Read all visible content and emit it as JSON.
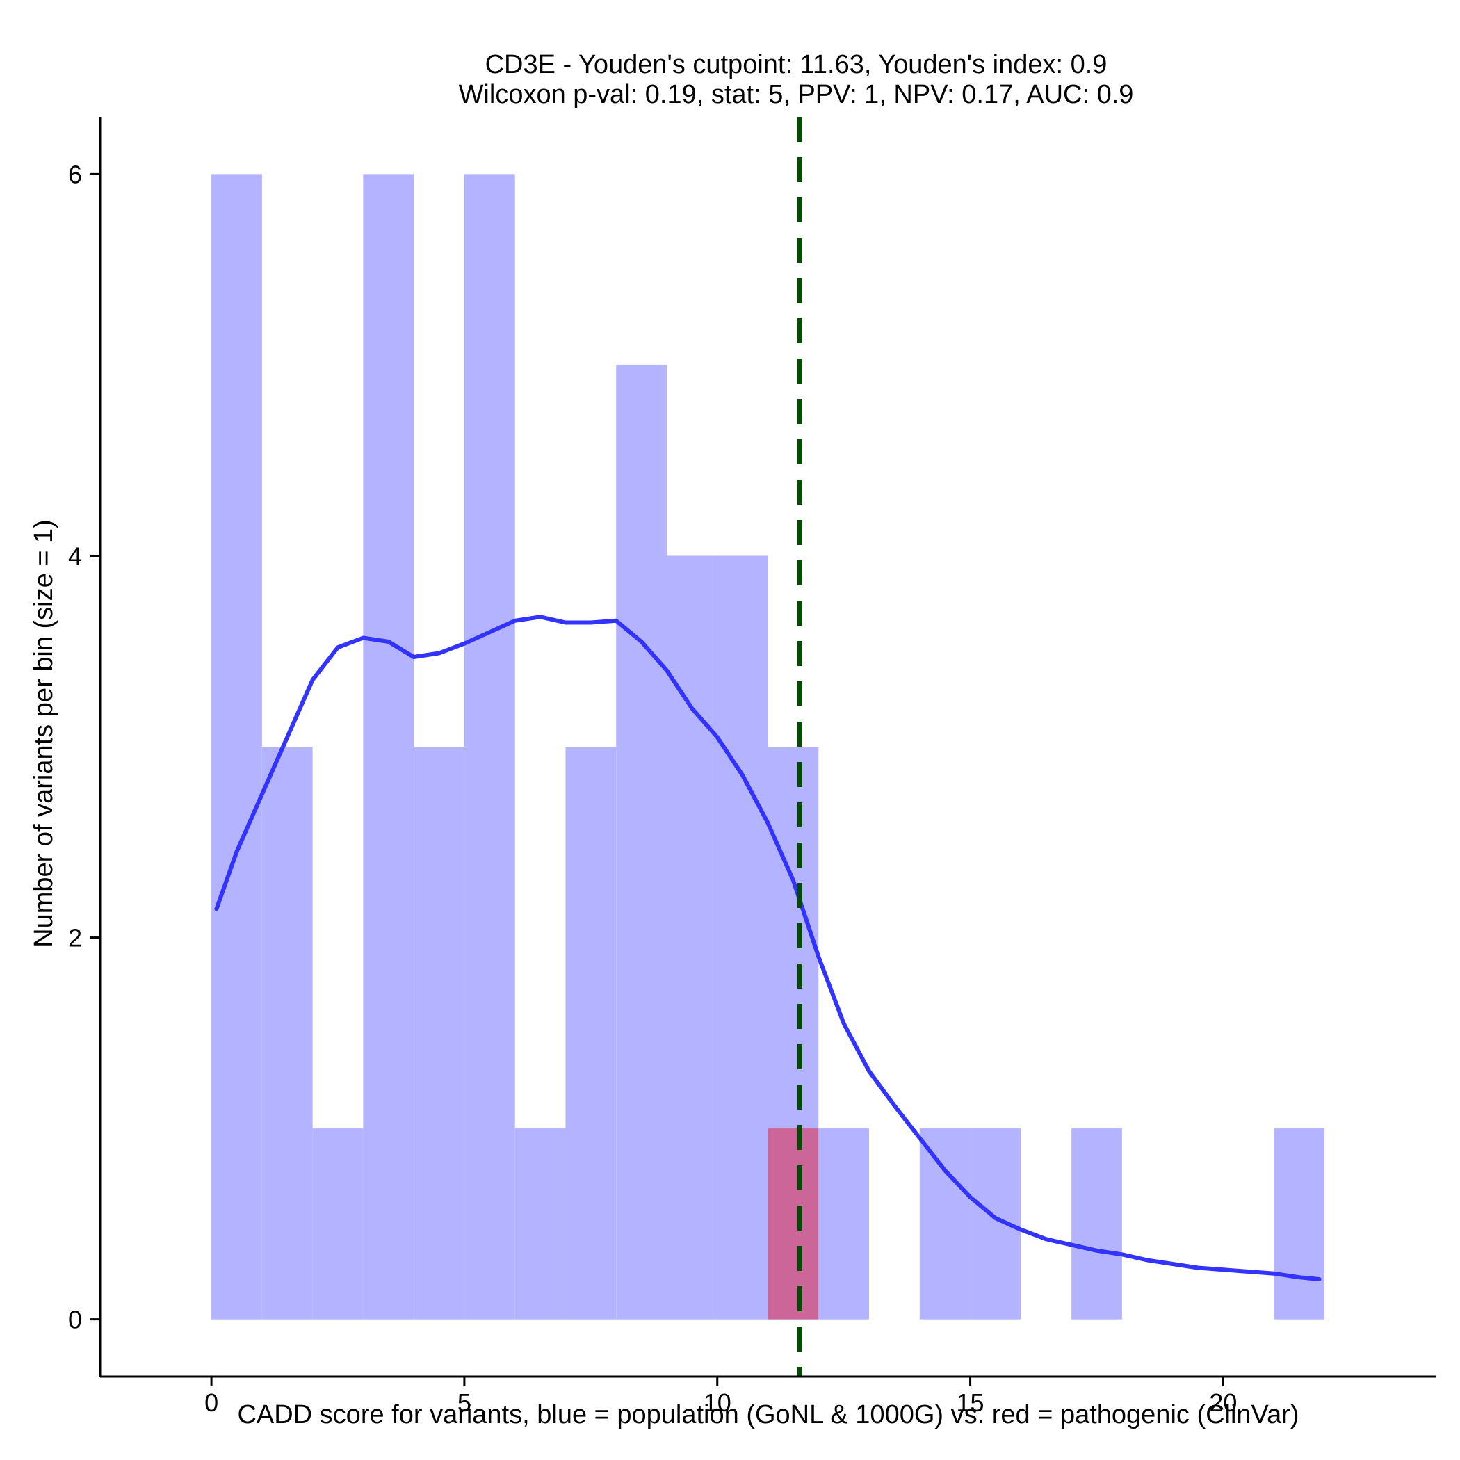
{
  "chart_data": {
    "type": "bar",
    "title_lines": [
      "CD3E - Youden's cutpoint: 11.63, Youden's index: 0.9",
      "Wilcoxon p-val: 0.19, stat: 5, PPV: 1, NPV: 0.17, AUC: 0.9"
    ],
    "xlabel": "CADD score for variants, blue = population (GoNL & 1000G) vs. red = pathogenic (ClinVar)",
    "ylabel": "Number of variants per bin (size = 1)",
    "xlim": [
      -2.2,
      24.2
    ],
    "ylim": [
      -0.3,
      6.3
    ],
    "xticks": [
      0,
      5,
      10,
      15,
      20
    ],
    "yticks": [
      0,
      2,
      4,
      6
    ],
    "bin_width": 1,
    "cutpoint": 11.63,
    "series": [
      {
        "name": "population (GoNL & 1000G)",
        "color": "#b3b3ff",
        "bins": [
          {
            "start": 0,
            "count": 6
          },
          {
            "start": 1,
            "count": 3
          },
          {
            "start": 2,
            "count": 1
          },
          {
            "start": 3,
            "count": 6
          },
          {
            "start": 4,
            "count": 3
          },
          {
            "start": 5,
            "count": 6
          },
          {
            "start": 6,
            "count": 1
          },
          {
            "start": 7,
            "count": 3
          },
          {
            "start": 8,
            "count": 5
          },
          {
            "start": 9,
            "count": 4
          },
          {
            "start": 10,
            "count": 4
          },
          {
            "start": 11,
            "count": 3
          },
          {
            "start": 12,
            "count": 1
          },
          {
            "start": 14,
            "count": 1
          },
          {
            "start": 15,
            "count": 1
          },
          {
            "start": 17,
            "count": 1
          },
          {
            "start": 21,
            "count": 1
          }
        ]
      },
      {
        "name": "pathogenic (ClinVar)",
        "color": "#cc6699",
        "bins": [
          {
            "start": 11,
            "count": 1
          }
        ]
      }
    ],
    "density_curve": {
      "name": "population density",
      "color": "#3333ff",
      "x": [
        0.1,
        0.5,
        1.0,
        1.5,
        2.0,
        2.5,
        3.0,
        3.5,
        4.0,
        4.5,
        5.0,
        5.5,
        6.0,
        6.5,
        7.0,
        7.5,
        8.0,
        8.5,
        9.0,
        9.5,
        10.0,
        10.5,
        11.0,
        11.5,
        12.0,
        12.5,
        13.0,
        13.5,
        14.0,
        14.5,
        15.0,
        15.5,
        16.0,
        16.5,
        17.0,
        17.5,
        18.0,
        18.5,
        19.0,
        19.5,
        20.0,
        20.5,
        21.0,
        21.5,
        21.9
      ],
      "y": [
        2.15,
        2.45,
        2.75,
        3.05,
        3.35,
        3.52,
        3.57,
        3.55,
        3.47,
        3.49,
        3.54,
        3.6,
        3.66,
        3.68,
        3.65,
        3.65,
        3.66,
        3.55,
        3.4,
        3.2,
        3.05,
        2.85,
        2.6,
        2.3,
        1.9,
        1.55,
        1.3,
        1.12,
        0.95,
        0.78,
        0.64,
        0.53,
        0.47,
        0.42,
        0.39,
        0.36,
        0.34,
        0.31,
        0.29,
        0.27,
        0.26,
        0.25,
        0.24,
        0.22,
        0.21
      ]
    }
  }
}
